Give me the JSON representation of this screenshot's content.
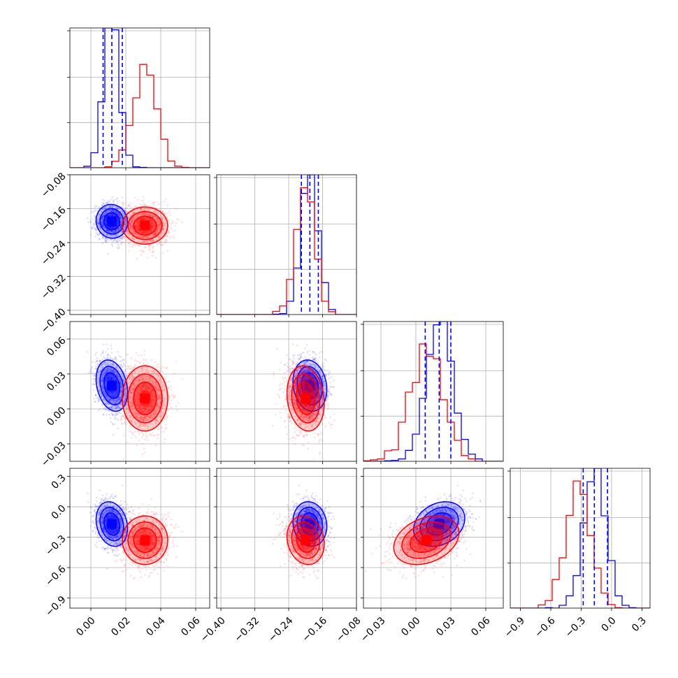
{
  "chart_data": {
    "type": "corner",
    "title": "",
    "parameters": [
      "",
      "",
      "",
      ""
    ],
    "series": [
      {
        "color": "#0000ff",
        "medians": [
          0.012,
          -0.19,
          0.02,
          -0.17
        ],
        "sds": [
          0.0045,
          0.02,
          0.011,
          0.11
        ],
        "quantiles": [
          [
            0.007,
            0.012,
            0.018
          ],
          [
            -0.21,
            -0.19,
            -0.17
          ],
          [
            0.008,
            0.02,
            0.03
          ],
          [
            -0.28,
            -0.17,
            -0.04
          ]
        ]
      },
      {
        "color": "#ff0000",
        "medians": [
          0.031,
          -0.2,
          0.009,
          -0.33
        ],
        "sds": [
          0.0065,
          0.022,
          0.014,
          0.12
        ],
        "quantiles": [
          [
            0.026,
            0.031,
            0.036
          ],
          [
            -0.215,
            -0.2,
            -0.185
          ],
          [
            0.0,
            0.009,
            0.018
          ],
          [
            -0.41,
            -0.33,
            -0.25
          ]
        ]
      }
    ],
    "quantile_lines_color": "#0000ff",
    "ranges": [
      [
        -0.012,
        0.068
      ],
      [
        -0.41,
        -0.08
      ],
      [
        -0.045,
        0.075
      ],
      [
        -1.0,
        0.38
      ]
    ],
    "ticks": [
      [
        0.0,
        0.02,
        0.04,
        0.06
      ],
      [
        -0.4,
        -0.32,
        -0.24,
        -0.16,
        -0.08
      ],
      [
        -0.03,
        0.0,
        0.03,
        0.06
      ],
      [
        -0.9,
        -0.6,
        -0.3,
        0.0,
        0.3
      ]
    ],
    "tick_labels": [
      [
        "0.00",
        "0.02",
        "0.04",
        "0.06"
      ],
      [
        "−0.40",
        "−0.32",
        "−0.24",
        "−0.16",
        "−0.08"
      ],
      [
        "−0.03",
        "0.00",
        "0.03",
        "0.06"
      ],
      [
        "−0.9",
        "−0.6",
        "−0.3",
        "0.0",
        "0.3"
      ]
    ],
    "grid": true,
    "legend": "none"
  }
}
